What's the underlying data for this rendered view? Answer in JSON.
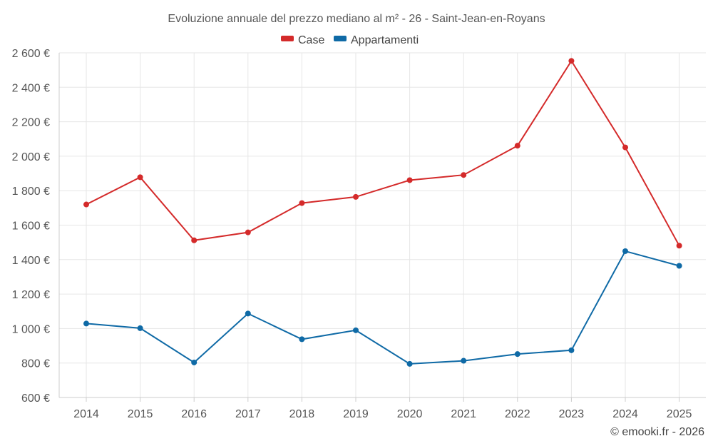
{
  "chart_data": {
    "type": "line",
    "title": "Evoluzione annuale del prezzo mediano al m² - 26 - Saint-Jean-en-Royans",
    "categories": [
      "2014",
      "2015",
      "2016",
      "2017",
      "2018",
      "2019",
      "2020",
      "2021",
      "2022",
      "2023",
      "2024",
      "2025"
    ],
    "series": [
      {
        "name": "Case",
        "color": "#d42a2a",
        "values": [
          1720,
          1878,
          1512,
          1558,
          1728,
          1764,
          1861,
          1891,
          2061,
          2553,
          2051,
          1481
        ]
      },
      {
        "name": "Appartamenti",
        "color": "#0f6aa6",
        "values": [
          1029,
          1002,
          803,
          1087,
          938,
          990,
          795,
          813,
          852,
          874,
          1449,
          1364
        ]
      }
    ],
    "y_ticks": [
      {
        "value": 2600,
        "label": "2 600 €"
      },
      {
        "value": 2400,
        "label": "2 400 €"
      },
      {
        "value": 2200,
        "label": "2 200 €"
      },
      {
        "value": 2000,
        "label": "2 000 €"
      },
      {
        "value": 1800,
        "label": "1 800 €"
      },
      {
        "value": 1600,
        "label": "1 600 €"
      },
      {
        "value": 1400,
        "label": "1 400 €"
      },
      {
        "value": 1200,
        "label": "1 200 €"
      },
      {
        "value": 1000,
        "label": "1 000 €"
      },
      {
        "value": 800,
        "label": "800 €"
      },
      {
        "value": 600,
        "label": "600 €"
      }
    ],
    "ylim": [
      600,
      2600
    ],
    "xlabel": "",
    "ylabel": "",
    "grid": true,
    "legend_position": "top-center"
  },
  "credit": "© emooki.fr - 2026"
}
